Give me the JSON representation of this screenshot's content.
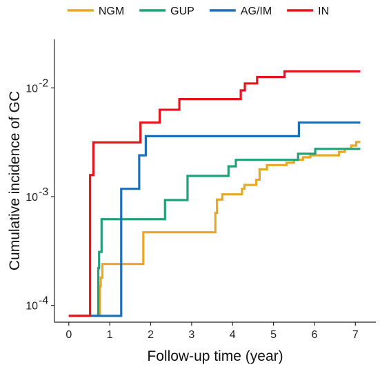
{
  "chart_data": {
    "type": "line",
    "title": "",
    "xlabel": "Follow-up time (year)",
    "ylabel": "Cumulative incidence of GC",
    "xlim": [
      -0.35,
      7.5
    ],
    "ylim": [
      7e-05,
      0.028
    ],
    "yscale": "log",
    "xticks": [
      0,
      1,
      2,
      3,
      4,
      5,
      6,
      7
    ],
    "yticks": [
      {
        "value": 0.0001,
        "base": "10",
        "exp": "-4"
      },
      {
        "value": 0.001,
        "base": "10",
        "exp": "-3"
      },
      {
        "value": 0.01,
        "base": "10",
        "exp": "-2"
      }
    ],
    "grid": false,
    "legend": {
      "position": "top",
      "entries": [
        "NGM",
        "GUP",
        "AG/IM",
        "IN"
      ]
    },
    "step": true,
    "series": [
      {
        "name": "NGM",
        "color": "#E8A825",
        "points": [
          [
            0.0,
            8e-05
          ],
          [
            0.76,
            8e-05
          ],
          [
            0.76,
            0.00015
          ],
          [
            0.78,
            0.00015
          ],
          [
            0.78,
            0.00018
          ],
          [
            0.82,
            0.00018
          ],
          [
            0.82,
            0.00024
          ],
          [
            1.82,
            0.00024
          ],
          [
            1.82,
            0.00047
          ],
          [
            3.58,
            0.00047
          ],
          [
            3.58,
            0.00071
          ],
          [
            3.62,
            0.00071
          ],
          [
            3.62,
            0.00094
          ],
          [
            3.75,
            0.00094
          ],
          [
            3.75,
            0.00105
          ],
          [
            4.23,
            0.00105
          ],
          [
            4.23,
            0.00118
          ],
          [
            4.29,
            0.00118
          ],
          [
            4.29,
            0.00128
          ],
          [
            4.58,
            0.00128
          ],
          [
            4.58,
            0.00143
          ],
          [
            4.66,
            0.00143
          ],
          [
            4.66,
            0.00178
          ],
          [
            4.84,
            0.00178
          ],
          [
            4.84,
            0.00195
          ],
          [
            5.32,
            0.00195
          ],
          [
            5.32,
            0.00205
          ],
          [
            5.5,
            0.00205
          ],
          [
            5.5,
            0.00218
          ],
          [
            5.72,
            0.00218
          ],
          [
            5.72,
            0.0023
          ],
          [
            5.9,
            0.0023
          ],
          [
            5.9,
            0.0024
          ],
          [
            6.6,
            0.0024
          ],
          [
            6.6,
            0.00258
          ],
          [
            6.74,
            0.00258
          ],
          [
            6.74,
            0.00275
          ],
          [
            6.9,
            0.00275
          ],
          [
            6.9,
            0.00295
          ],
          [
            7.02,
            0.00295
          ],
          [
            7.02,
            0.00318
          ],
          [
            7.12,
            0.00318
          ]
        ]
      },
      {
        "name": "GUP",
        "color": "#22A07A",
        "points": [
          [
            0.0,
            8e-05
          ],
          [
            0.72,
            8e-05
          ],
          [
            0.72,
            0.00022
          ],
          [
            0.74,
            0.00022
          ],
          [
            0.74,
            0.00031
          ],
          [
            0.8,
            0.00031
          ],
          [
            0.8,
            0.00062
          ],
          [
            2.35,
            0.00062
          ],
          [
            2.35,
            0.00093
          ],
          [
            2.9,
            0.00093
          ],
          [
            2.9,
            0.00155
          ],
          [
            3.9,
            0.00155
          ],
          [
            3.9,
            0.0019
          ],
          [
            4.08,
            0.0019
          ],
          [
            4.08,
            0.00218
          ],
          [
            5.6,
            0.00218
          ],
          [
            5.6,
            0.00248
          ],
          [
            6.02,
            0.00248
          ],
          [
            6.02,
            0.00275
          ],
          [
            7.12,
            0.00275
          ]
        ]
      },
      {
        "name": "AG/IM",
        "color": "#1F6FB4",
        "points": [
          [
            0.0,
            8e-05
          ],
          [
            1.28,
            8e-05
          ],
          [
            1.28,
            0.00118
          ],
          [
            1.72,
            0.00118
          ],
          [
            1.72,
            0.0024
          ],
          [
            1.88,
            0.0024
          ],
          [
            1.88,
            0.0036
          ],
          [
            5.62,
            0.0036
          ],
          [
            5.62,
            0.0048
          ],
          [
            7.12,
            0.0048
          ]
        ]
      },
      {
        "name": "IN",
        "color": "#E8141C",
        "points": [
          [
            0.0,
            8e-05
          ],
          [
            0.52,
            8e-05
          ],
          [
            0.52,
            0.00158
          ],
          [
            0.6,
            0.00158
          ],
          [
            0.6,
            0.00315
          ],
          [
            1.75,
            0.00315
          ],
          [
            1.75,
            0.0048
          ],
          [
            2.22,
            0.0048
          ],
          [
            2.22,
            0.0063
          ],
          [
            2.7,
            0.0063
          ],
          [
            2.7,
            0.0079
          ],
          [
            4.2,
            0.0079
          ],
          [
            4.2,
            0.0095
          ],
          [
            4.3,
            0.0095
          ],
          [
            4.3,
            0.011
          ],
          [
            4.6,
            0.011
          ],
          [
            4.6,
            0.0126
          ],
          [
            5.27,
            0.0126
          ],
          [
            5.27,
            0.0142
          ],
          [
            7.12,
            0.0142
          ]
        ]
      }
    ]
  }
}
